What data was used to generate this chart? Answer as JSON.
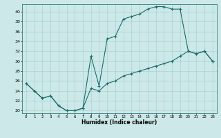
{
  "title": "",
  "xlabel": "Humidex (Indice chaleur)",
  "ylabel": "",
  "background_color": "#cce8e8",
  "grid_color": "#aad0d0",
  "line_color": "#1a6b6b",
  "xlim": [
    -0.5,
    23.5
  ],
  "ylim": [
    19.5,
    41.5
  ],
  "yticks": [
    20,
    22,
    24,
    26,
    28,
    30,
    32,
    34,
    36,
    38,
    40
  ],
  "xticks": [
    0,
    1,
    2,
    3,
    4,
    5,
    6,
    7,
    8,
    9,
    10,
    11,
    12,
    13,
    14,
    15,
    16,
    17,
    18,
    19,
    20,
    21,
    22,
    23
  ],
  "series": [
    {
      "x": [
        0,
        1,
        2,
        3,
        4,
        5,
        6,
        7,
        8,
        9,
        10,
        11,
        12,
        13,
        14,
        15,
        16,
        17,
        18,
        19,
        20,
        21,
        22,
        23
      ],
      "y": [
        25.5,
        24.0,
        22.5,
        23.0,
        21.0,
        20.0,
        20.0,
        20.5,
        31.0,
        25.0,
        34.5,
        35.0,
        38.5,
        39.0,
        39.5,
        40.5,
        41.0,
        41.0,
        40.5,
        40.5,
        32.0,
        31.5,
        32.0,
        30.0
      ]
    },
    {
      "x": [
        0,
        1,
        2,
        3,
        4,
        5,
        6,
        7,
        8,
        9,
        10,
        11,
        12,
        13,
        14,
        15,
        16,
        17,
        18,
        19,
        20,
        21,
        22,
        23
      ],
      "y": [
        25.5,
        24.0,
        22.5,
        23.0,
        21.0,
        20.0,
        20.0,
        20.5,
        24.5,
        24.0,
        25.5,
        26.0,
        27.0,
        27.5,
        28.0,
        28.5,
        29.0,
        29.5,
        30.0,
        31.0,
        32.0,
        31.5,
        32.0,
        30.0
      ]
    }
  ]
}
